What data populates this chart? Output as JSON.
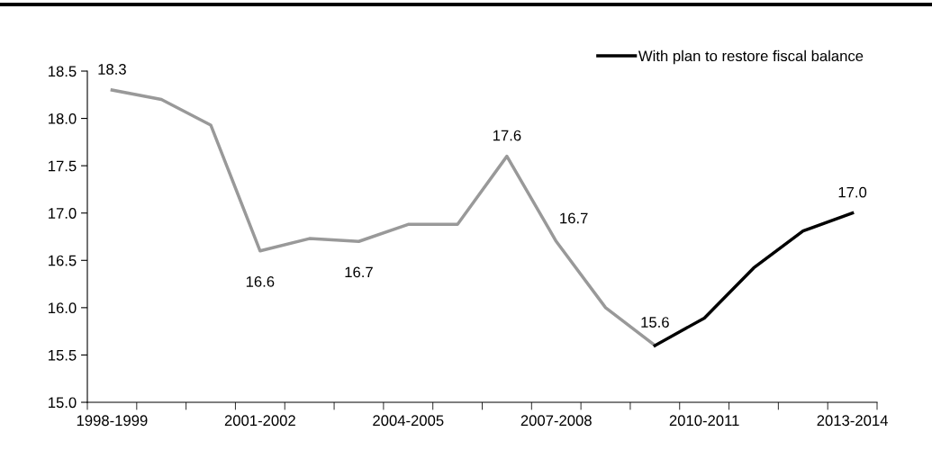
{
  "chart_data": {
    "type": "line",
    "categories": [
      "1998-1999",
      null,
      null,
      "2001-2002",
      null,
      null,
      "2004-2005",
      null,
      null,
      "2007-2008",
      null,
      null,
      "2010-2011",
      null,
      null,
      "2013-2014"
    ],
    "series": [
      {
        "color": "#999999",
        "values": [
          18.3,
          18.2,
          17.93,
          16.6,
          16.73,
          16.7,
          16.88,
          16.88,
          17.6,
          16.7,
          16.0,
          15.6,
          null,
          null,
          null,
          null
        ],
        "value_labels": [
          "18.3",
          null,
          null,
          "16.6",
          null,
          "16.7",
          null,
          null,
          "17.6",
          "16.7",
          null,
          "15.6",
          null,
          null,
          null,
          null
        ]
      },
      {
        "name": "With plan to restore fiscal balance",
        "color": "#000000",
        "values": [
          null,
          null,
          null,
          null,
          null,
          null,
          null,
          null,
          null,
          null,
          null,
          15.6,
          15.89,
          16.42,
          16.81,
          17.0
        ],
        "value_labels": [
          null,
          null,
          null,
          null,
          null,
          null,
          null,
          null,
          null,
          null,
          null,
          null,
          null,
          null,
          null,
          "17.0"
        ]
      }
    ],
    "ylim": [
      15.0,
      18.5
    ],
    "yticks": [
      {
        "value": 15,
        "label": "15.0"
      },
      15.5,
      {
        "value": 16,
        "label": "16.0"
      },
      16.5,
      {
        "value": 17,
        "label": "17.0"
      },
      17.5,
      {
        "value": 18,
        "label": "18.0"
      },
      18.5
    ],
    "grid": false,
    "legend": "top right",
    "marker": "none",
    "line_style": "solid"
  }
}
